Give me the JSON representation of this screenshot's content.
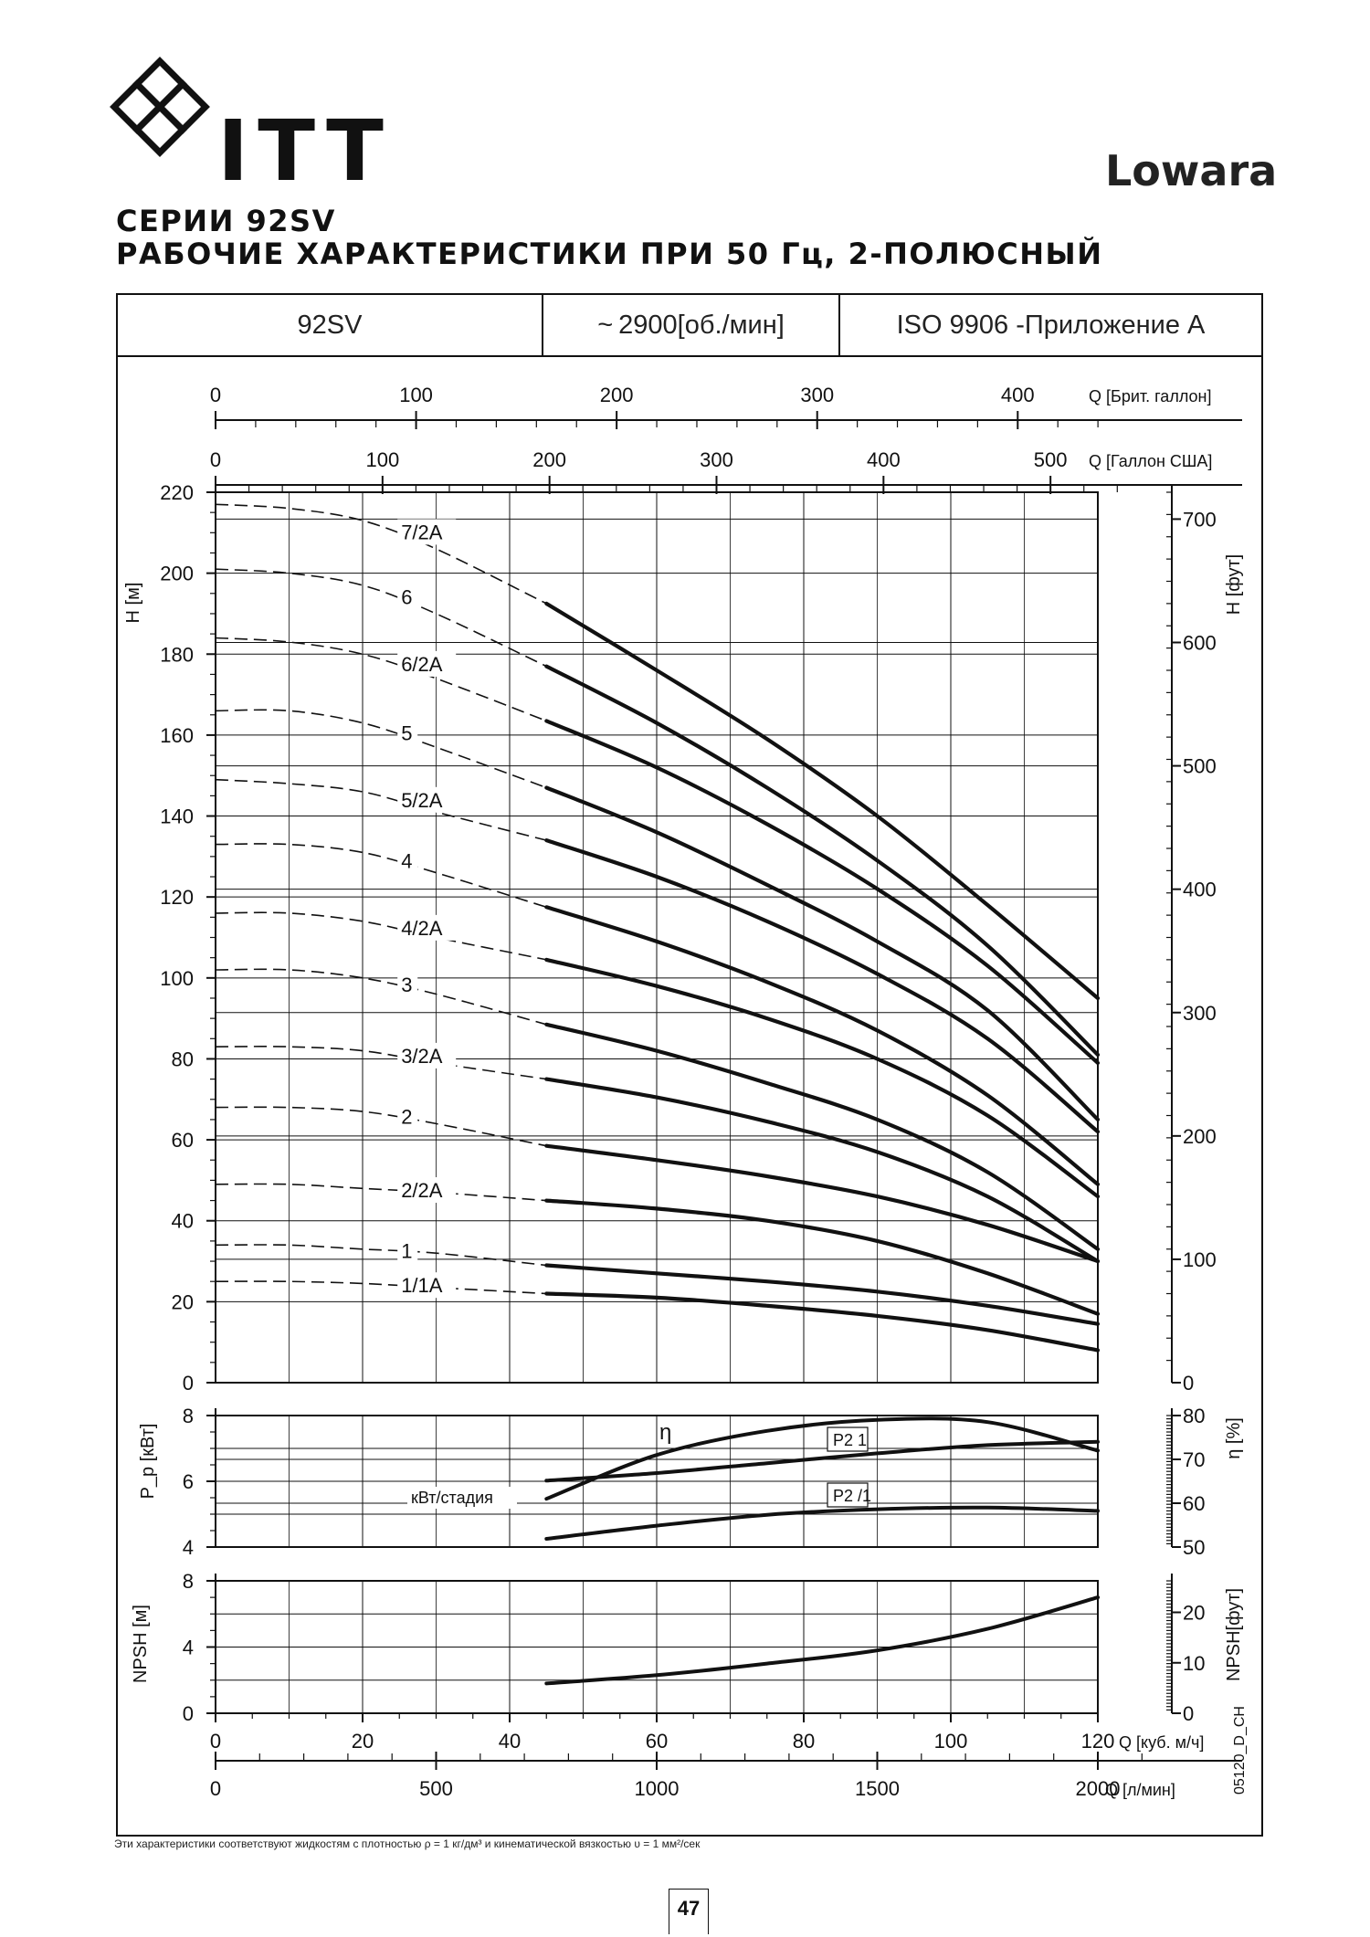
{
  "header": {
    "logo_text": "ITT",
    "brand": "Lowara",
    "title_line1": "СЕРИИ 92SV",
    "title_line2": "РАБОЧИЕ ХАРАКТЕРИСТИКИ ПРИ 50 Гц, 2-ПОЛЮСНЫЙ"
  },
  "info_box": {
    "series": "92SV",
    "speed_prefix": "~",
    "speed": "2900",
    "speed_unit": "[об./мин]",
    "standard": "ISO 9906 -Приложение A"
  },
  "chart_data": [
    {
      "type": "line",
      "panel": "head",
      "top_axes": [
        {
          "label": "Q [Брит. галлон]",
          "ticks": [
            0,
            100,
            200,
            300,
            400
          ]
        },
        {
          "label": "Q [Галлон США]",
          "ticks": [
            0,
            100,
            200,
            300,
            400,
            500
          ]
        }
      ],
      "ylabel": "H [м]",
      "y2label": "H [фут]",
      "ylim": [
        0,
        220
      ],
      "yticks": [
        0,
        20,
        40,
        60,
        80,
        100,
        120,
        140,
        160,
        180,
        200,
        220
      ],
      "y2ticks": [
        0,
        100,
        200,
        300,
        400,
        500,
        600,
        700
      ],
      "xlim": [
        0,
        120
      ],
      "x_unit": "м³/ч",
      "dashed_segment_x_range": [
        0,
        45
      ],
      "series": [
        {
          "name": "7/2A",
          "x": [
            0,
            10,
            20,
            30,
            45,
            60,
            75,
            90,
            105,
            120
          ],
          "values": [
            217,
            216,
            213,
            206,
            192.5,
            176,
            159,
            140,
            118,
            95
          ]
        },
        {
          "name": "6",
          "x": [
            0,
            10,
            20,
            30,
            45,
            60,
            75,
            90,
            105,
            120
          ],
          "values": [
            201,
            200,
            197,
            190,
            177,
            163,
            147,
            129,
            108,
            81
          ]
        },
        {
          "name": "6/2A",
          "x": [
            0,
            10,
            20,
            30,
            45,
            60,
            75,
            90,
            105,
            120
          ],
          "values": [
            184,
            183,
            180,
            174,
            163.5,
            152,
            138,
            122,
            103,
            79
          ]
        },
        {
          "name": "5",
          "x": [
            0,
            10,
            20,
            30,
            45,
            60,
            75,
            90,
            105,
            120
          ],
          "values": [
            166,
            166,
            163,
            157,
            147,
            136,
            123,
            109,
            92,
            65
          ]
        },
        {
          "name": "5/2A",
          "x": [
            0,
            10,
            20,
            30,
            45,
            60,
            75,
            90,
            105,
            120
          ],
          "values": [
            149,
            148,
            146,
            141,
            134,
            125,
            114,
            101,
            85,
            62
          ]
        },
        {
          "name": "4",
          "x": [
            0,
            10,
            20,
            30,
            45,
            60,
            75,
            90,
            105,
            120
          ],
          "values": [
            133,
            133,
            131,
            126,
            117.5,
            109,
            99,
            87,
            71,
            49
          ]
        },
        {
          "name": "4/2A",
          "x": [
            0,
            10,
            20,
            30,
            45,
            60,
            75,
            90,
            105,
            120
          ],
          "values": [
            116,
            116,
            114,
            110,
            104.5,
            98,
            90,
            80,
            66,
            46
          ]
        },
        {
          "name": "3",
          "x": [
            0,
            10,
            20,
            30,
            45,
            60,
            75,
            90,
            105,
            120
          ],
          "values": [
            102,
            102,
            100,
            96,
            88.5,
            82,
            74,
            65,
            52,
            33
          ]
        },
        {
          "name": "3/2A",
          "x": [
            0,
            10,
            20,
            30,
            45,
            60,
            75,
            90,
            105,
            120
          ],
          "values": [
            83,
            83,
            82,
            79,
            75,
            70.5,
            64.5,
            57,
            46,
            30
          ]
        },
        {
          "name": "2",
          "x": [
            0,
            10,
            20,
            30,
            45,
            60,
            75,
            90,
            105,
            120
          ],
          "values": [
            68,
            68,
            67,
            64,
            58.5,
            55,
            51,
            46,
            39,
            30
          ]
        },
        {
          "name": "2/2A",
          "x": [
            0,
            10,
            20,
            30,
            45,
            60,
            75,
            90,
            105,
            120
          ],
          "values": [
            49,
            49,
            48,
            47,
            45,
            43,
            40,
            35,
            27,
            17
          ]
        },
        {
          "name": "1",
          "x": [
            0,
            10,
            20,
            30,
            45,
            60,
            75,
            90,
            105,
            120
          ],
          "values": [
            34,
            34,
            33,
            32,
            29,
            27,
            25,
            22.5,
            19,
            14.5
          ]
        },
        {
          "name": "1/1A",
          "x": [
            0,
            10,
            20,
            30,
            45,
            60,
            75,
            90,
            105,
            120
          ],
          "values": [
            25,
            25,
            24.5,
            23.5,
            22,
            21,
            19,
            16.5,
            13,
            8
          ]
        }
      ]
    },
    {
      "type": "line",
      "panel": "power-efficiency",
      "ylabel": "P_p [кВт]",
      "y2label": "η [%]",
      "ylim": [
        4,
        8
      ],
      "yticks": [
        4,
        6,
        8
      ],
      "y2lim": [
        50,
        80
      ],
      "y2ticks": [
        50,
        60,
        70,
        80
      ],
      "xlim": [
        0,
        120
      ],
      "annotations": [
        "кВт/стадия"
      ],
      "series": [
        {
          "name": "η",
          "axis": "right",
          "x": [
            45,
            60,
            75,
            90,
            105,
            120
          ],
          "values": [
            61,
            71,
            76.5,
            79,
            78.5,
            72
          ]
        },
        {
          "name": "P2 1",
          "axis": "left",
          "x": [
            45,
            60,
            75,
            90,
            105,
            120
          ],
          "values": [
            6.02,
            6.25,
            6.55,
            6.85,
            7.1,
            7.2
          ]
        },
        {
          "name": "P2 /1",
          "axis": "left",
          "x": [
            45,
            60,
            75,
            90,
            105,
            120
          ],
          "values": [
            4.25,
            4.65,
            4.98,
            5.15,
            5.2,
            5.1
          ]
        }
      ]
    },
    {
      "type": "line",
      "panel": "npsh",
      "ylabel": "NPSH [м]",
      "y2label": "NPSH[фут]",
      "ylim": [
        0,
        8
      ],
      "yticks": [
        0,
        4,
        8
      ],
      "y2ticks": [
        0,
        10,
        20
      ],
      "xlim": [
        0,
        120
      ],
      "series": [
        {
          "name": "NPSH",
          "x": [
            45,
            60,
            75,
            90,
            105,
            120
          ],
          "values": [
            1.8,
            2.3,
            3.0,
            3.8,
            5.1,
            7.0
          ]
        }
      ]
    }
  ],
  "bottom_axes": [
    {
      "label": "Q [куб. м/ч]",
      "ticks": [
        0,
        20,
        40,
        60,
        80,
        100,
        120
      ]
    },
    {
      "label": "Q [л/мин]",
      "ticks": [
        0,
        500,
        1000,
        1500,
        2000
      ]
    }
  ],
  "code": "05120_D_CH",
  "footnote": "Эти характеристики соответствуют жидкостям с плотностью ρ = 1 кг/дм³ и кинематической вязкостью υ = 1 мм²/сек",
  "page_number": "47"
}
